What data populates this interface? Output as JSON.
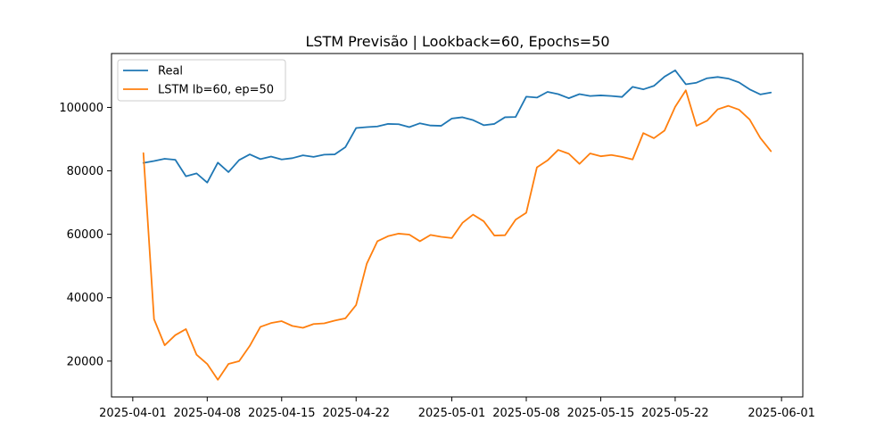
{
  "chart_data": {
    "type": "line",
    "title": "LSTM Previsão | Lookback=60, Epochs=50",
    "xlabel": "",
    "ylabel": "",
    "x_dates": [
      "2025-04-02",
      "2025-04-03",
      "2025-04-04",
      "2025-04-05",
      "2025-04-06",
      "2025-04-07",
      "2025-04-08",
      "2025-04-09",
      "2025-04-10",
      "2025-04-11",
      "2025-04-12",
      "2025-04-13",
      "2025-04-14",
      "2025-04-15",
      "2025-04-16",
      "2025-04-17",
      "2025-04-18",
      "2025-04-19",
      "2025-04-20",
      "2025-04-21",
      "2025-04-22",
      "2025-04-23",
      "2025-04-24",
      "2025-04-25",
      "2025-04-26",
      "2025-04-27",
      "2025-04-28",
      "2025-04-29",
      "2025-04-30",
      "2025-05-01",
      "2025-05-02",
      "2025-05-03",
      "2025-05-04",
      "2025-05-05",
      "2025-05-06",
      "2025-05-07",
      "2025-05-08",
      "2025-05-09",
      "2025-05-10",
      "2025-05-11",
      "2025-05-12",
      "2025-05-13",
      "2025-05-14",
      "2025-05-15",
      "2025-05-16",
      "2025-05-17",
      "2025-05-18",
      "2025-05-19",
      "2025-05-20",
      "2025-05-21",
      "2025-05-22",
      "2025-05-23",
      "2025-05-24",
      "2025-05-25",
      "2025-05-26",
      "2025-05-27",
      "2025-05-28",
      "2025-05-29",
      "2025-05-30",
      "2025-05-31"
    ],
    "series": [
      {
        "name": "Real",
        "color": "#1f77b4",
        "values": [
          82500,
          83100,
          83800,
          83500,
          78300,
          79200,
          76300,
          82600,
          79600,
          83400,
          85200,
          83700,
          84500,
          83600,
          84000,
          84900,
          84400,
          85100,
          85200,
          87500,
          93500,
          93800,
          94000,
          94800,
          94700,
          93800,
          95000,
          94300,
          94200,
          96500,
          96900,
          96000,
          94400,
          94800,
          96900,
          97000,
          103400,
          103100,
          104900,
          104200,
          102900,
          104200,
          103600,
          103800,
          103600,
          103300,
          106500,
          105700,
          106800,
          109700,
          111700,
          107300,
          107800,
          109200,
          109600,
          109100,
          107900,
          105700,
          104100,
          104700
        ]
      },
      {
        "name": "LSTM lb=60, ep=50",
        "color": "#ff7f0e",
        "values": [
          85600,
          33200,
          25000,
          28200,
          30100,
          22000,
          19100,
          14100,
          19100,
          20000,
          24800,
          30800,
          32000,
          32600,
          31100,
          30500,
          31700,
          31900,
          32800,
          33500,
          37700,
          50700,
          57800,
          59400,
          60200,
          59900,
          57800,
          59800,
          59200,
          58800,
          63600,
          66200,
          64100,
          59600,
          59700,
          64600,
          66800,
          81100,
          83300,
          86600,
          85400,
          82200,
          85500,
          84600,
          85000,
          84400,
          83600,
          91900,
          90300,
          92700,
          100200,
          105400,
          94200,
          95800,
          99400,
          100500,
          99300,
          96200,
          90400,
          86200
        ]
      }
    ],
    "y_ticks": [
      20000,
      40000,
      60000,
      80000,
      100000
    ],
    "y_tick_labels": [
      "20000",
      "40000",
      "60000",
      "80000",
      "100000"
    ],
    "ylim": [
      8700,
      117000
    ],
    "x_ticks": [
      "2025-04-01",
      "2025-04-08",
      "2025-04-15",
      "2025-04-22",
      "2025-05-01",
      "2025-05-08",
      "2025-05-15",
      "2025-05-22",
      "2025-06-01"
    ],
    "x_tick_labels": [
      "2025-04-01",
      "2025-04-08",
      "2025-04-15",
      "2025-04-22",
      "2025-05-01",
      "2025-05-08",
      "2025-05-15",
      "2025-05-22",
      "2025-06-01"
    ],
    "xlim": [
      "2025-03-30",
      "2025-06-03"
    ],
    "grid": false,
    "legend_position": "top-left"
  }
}
